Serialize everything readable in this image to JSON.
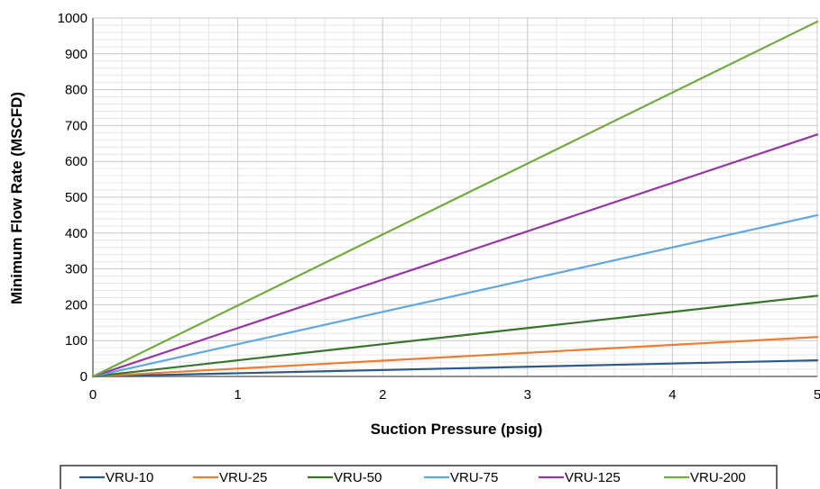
{
  "chart_data": {
    "type": "line",
    "title": "",
    "xlabel": "Suction Pressure (psig)",
    "ylabel": "Minimum Flow Rate (MSCFD)",
    "xlim": [
      0,
      5
    ],
    "ylim": [
      0,
      1000
    ],
    "x_ticks": [
      "0",
      "1",
      "2",
      "3",
      "4",
      "5"
    ],
    "y_ticks": [
      "0",
      "100",
      "200",
      "300",
      "400",
      "500",
      "600",
      "700",
      "800",
      "900",
      "1000"
    ],
    "grid": true,
    "legend_position": "bottom",
    "x": [
      0,
      1,
      2,
      3,
      4,
      5
    ],
    "series": [
      {
        "name": "VRU-10",
        "color": "#2e5a88",
        "values": [
          0,
          9,
          18,
          27,
          36,
          45
        ]
      },
      {
        "name": "VRU-25",
        "color": "#ed7d31",
        "values": [
          0,
          22,
          44,
          66,
          88,
          110
        ]
      },
      {
        "name": "VRU-50",
        "color": "#38742b",
        "values": [
          0,
          45,
          90,
          135,
          180,
          225
        ]
      },
      {
        "name": "VRU-75",
        "color": "#5fa8e0",
        "values": [
          0,
          90,
          180,
          270,
          360,
          450
        ]
      },
      {
        "name": "VRU-125",
        "color": "#9a35a8",
        "values": [
          0,
          135,
          270,
          405,
          540,
          675
        ]
      },
      {
        "name": "VRU-200",
        "color": "#72ac3e",
        "values": [
          0,
          198,
          396,
          594,
          792,
          990
        ]
      }
    ]
  }
}
